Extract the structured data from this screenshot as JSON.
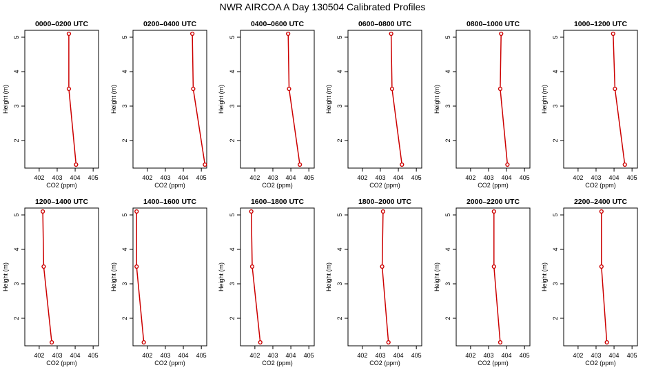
{
  "title": "NWR AIRCOA A  Day 130504  Calibrated Profiles",
  "chart_data": {
    "type": "line",
    "series_color": "#cc0000",
    "xlabel": "CO2 (ppm)",
    "ylabel": "Height (m)",
    "xlim": [
      401.2,
      405.3
    ],
    "ylim": [
      1.2,
      5.2
    ],
    "xticks": [
      402,
      403,
      404,
      405
    ],
    "yticks": [
      2,
      3,
      4,
      5
    ],
    "heights": [
      5.1,
      3.5,
      1.3
    ],
    "panels": [
      {
        "title": "0000–0200 UTC",
        "co2": [
          403.65,
          403.65,
          404.05
        ]
      },
      {
        "title": "0200–0400 UTC",
        "co2": [
          404.5,
          404.55,
          405.2
        ]
      },
      {
        "title": "0400–0600 UTC",
        "co2": [
          403.85,
          403.9,
          404.5
        ]
      },
      {
        "title": "0600–0800 UTC",
        "co2": [
          403.6,
          403.65,
          404.2
        ]
      },
      {
        "title": "0800–1000 UTC",
        "co2": [
          403.7,
          403.65,
          404.05
        ]
      },
      {
        "title": "1000–1200 UTC",
        "co2": [
          403.95,
          404.05,
          404.6
        ]
      },
      {
        "title": "1200–1400 UTC",
        "co2": [
          402.2,
          402.25,
          402.7
        ]
      },
      {
        "title": "1400–1600 UTC",
        "co2": [
          401.4,
          401.4,
          401.8
        ]
      },
      {
        "title": "1600–1800 UTC",
        "co2": [
          401.8,
          401.85,
          402.3
        ]
      },
      {
        "title": "1800–2000 UTC",
        "co2": [
          403.15,
          403.1,
          403.45
        ]
      },
      {
        "title": "2000–2200 UTC",
        "co2": [
          403.3,
          403.3,
          403.65
        ]
      },
      {
        "title": "2200–2400 UTC",
        "co2": [
          403.3,
          403.3,
          403.6
        ]
      }
    ]
  }
}
